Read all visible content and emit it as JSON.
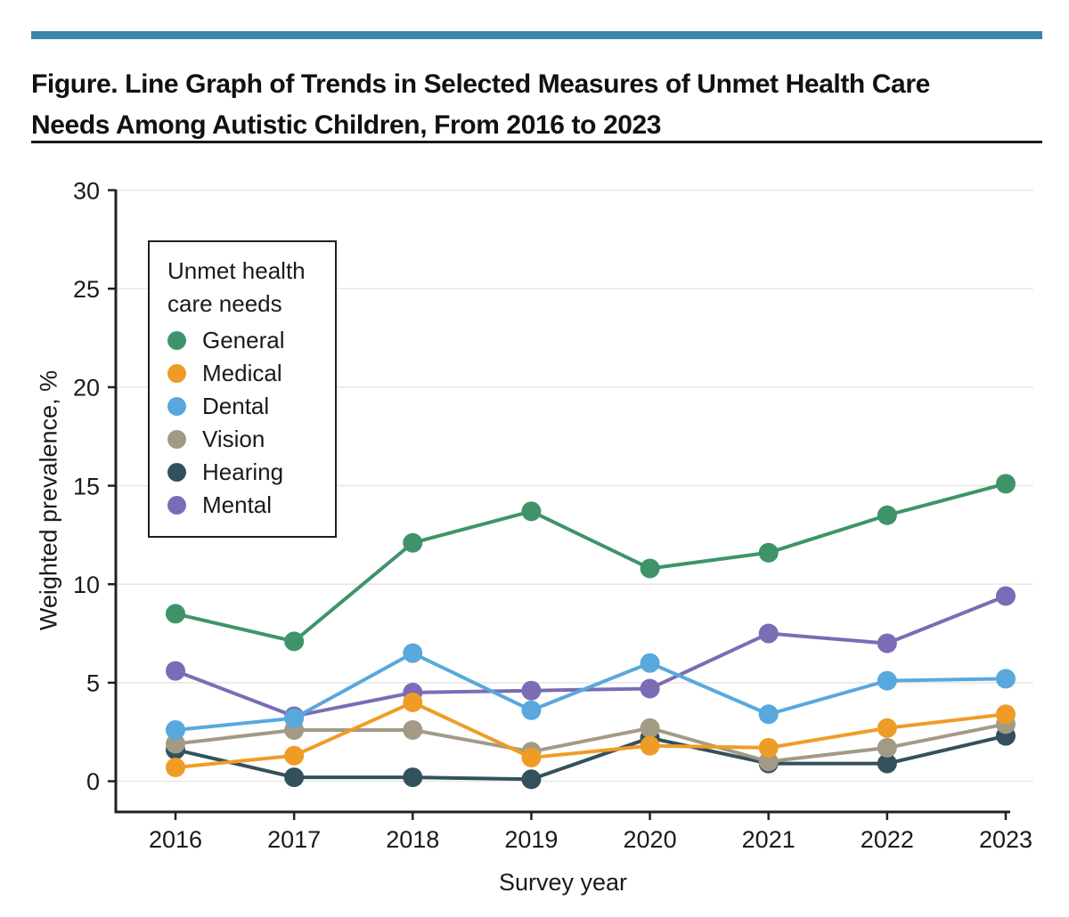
{
  "header": {
    "accent_bar_color": "#3a86aa",
    "title_line1": "Figure. Line Graph of Trends in Selected Measures of Unmet Health Care",
    "title_line2": "Needs Among Autistic Children, From 2016 to 2023"
  },
  "chart_data": {
    "type": "line",
    "x": [
      2016,
      2017,
      2018,
      2019,
      2020,
      2021,
      2022,
      2023
    ],
    "xlabel": "Survey year",
    "ylabel": "Weighted prevalence, %",
    "ylim": [
      0,
      30
    ],
    "yticks": [
      0,
      5,
      10,
      15,
      20,
      25,
      30
    ],
    "grid": true,
    "legend_title_line1": "Unmet health",
    "legend_title_line2": "care needs",
    "legend_position": "upper-left-inside",
    "series": [
      {
        "name": "General",
        "color": "#3e9468",
        "values": [
          8.5,
          7.1,
          12.1,
          13.7,
          10.8,
          11.6,
          13.5,
          15.1
        ]
      },
      {
        "name": "Medical",
        "color": "#ef9c27",
        "values": [
          0.7,
          1.3,
          4.0,
          1.2,
          1.8,
          1.7,
          2.7,
          3.4
        ]
      },
      {
        "name": "Dental",
        "color": "#58a8dd",
        "values": [
          2.6,
          3.2,
          6.5,
          3.6,
          6.0,
          3.4,
          5.1,
          5.2
        ]
      },
      {
        "name": "Vision",
        "color": "#a39a85",
        "values": [
          1.9,
          2.6,
          2.6,
          1.5,
          2.7,
          1.0,
          1.7,
          2.9
        ]
      },
      {
        "name": "Hearing",
        "color": "#33515c",
        "values": [
          1.6,
          0.2,
          0.2,
          0.1,
          2.2,
          0.9,
          0.9,
          2.3
        ]
      },
      {
        "name": "Mental",
        "color": "#7b6cb5",
        "values": [
          5.6,
          3.3,
          4.5,
          4.6,
          4.7,
          7.5,
          7.0,
          9.4
        ]
      }
    ],
    "draw_order": [
      0,
      5,
      4,
      3,
      2,
      1
    ],
    "axis_color": "#212121",
    "gridline_color": "#e8e8e5"
  }
}
